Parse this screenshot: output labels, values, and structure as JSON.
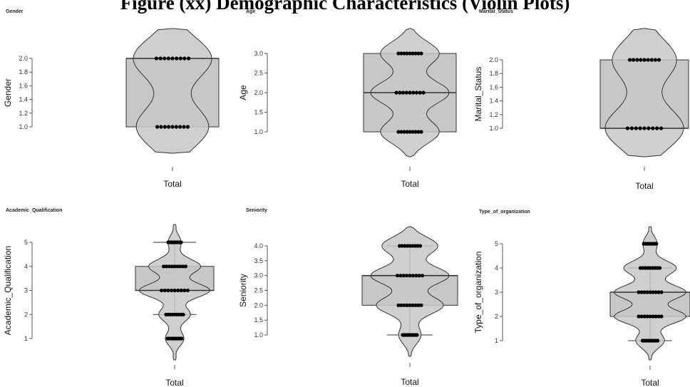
{
  "page_title": "Figure (xx) Demographic Characteristics (Violin Plots)",
  "chart_data": [
    {
      "type": "violin",
      "title": "Gender",
      "ylabel": "Gender",
      "categories": [
        "Total"
      ],
      "yticks": [
        "1.0",
        "1.2",
        "1.4",
        "1.6",
        "1.8",
        "2.0"
      ],
      "ylim": [
        1.0,
        2.0
      ],
      "box": {
        "q1": 1.0,
        "median": 2.0,
        "q3": 2.0,
        "whisker_low": 1.0,
        "whisker_high": 2.0
      },
      "values": [
        1,
        2
      ],
      "density": [
        0.48,
        0.52
      ]
    },
    {
      "type": "violin",
      "title": "Age",
      "ylabel": "Age",
      "categories": [
        "Total"
      ],
      "yticks": [
        "1.0",
        "1.5",
        "2.0",
        "2.5",
        "3.0"
      ],
      "ylim": [
        1.0,
        3.0
      ],
      "box": {
        "q1": 1.0,
        "median": 2.0,
        "q3": 3.0,
        "whisker_low": 1.0,
        "whisker_high": 3.0
      },
      "values": [
        1,
        2,
        3
      ],
      "density": [
        0.3,
        0.4,
        0.3
      ]
    },
    {
      "type": "violin",
      "title": "Marital_Status",
      "ylabel": "Marital_Status",
      "categories": [
        "Total"
      ],
      "yticks": [
        "1.0",
        "1.2",
        "1.4",
        "1.6",
        "1.8",
        "2.0"
      ],
      "ylim": [
        1.0,
        2.0
      ],
      "box": {
        "q1": 1.0,
        "median": 1.0,
        "q3": 2.0,
        "whisker_low": 1.0,
        "whisker_high": 2.0
      },
      "values": [
        1,
        2
      ],
      "density": [
        0.55,
        0.45
      ]
    },
    {
      "type": "violin",
      "title": "Academic_Qualification",
      "ylabel": "Academic_Qualification",
      "categories": [
        "Total"
      ],
      "yticks": [
        "1",
        "2",
        "3",
        "4",
        "5"
      ],
      "ylim": [
        1,
        5
      ],
      "box": {
        "q1": 3.0,
        "median": 3.0,
        "q3": 4.0,
        "whisker_low": 2.0,
        "whisker_high": 5.0
      },
      "values": [
        1,
        2,
        3,
        4,
        5
      ],
      "density": [
        0.1,
        0.17,
        0.38,
        0.28,
        0.07
      ]
    },
    {
      "type": "violin",
      "title": "Seniority",
      "ylabel": "Seniority",
      "categories": [
        "Total"
      ],
      "yticks": [
        "1.0",
        "1.5",
        "2.0",
        "2.5",
        "3.0",
        "3.5",
        "4.0"
      ],
      "ylim": [
        1.0,
        4.0
      ],
      "box": {
        "q1": 2.0,
        "median": 3.0,
        "q3": 3.0,
        "whisker_low": 1.0,
        "whisker_high": 4.0
      },
      "values": [
        1,
        2,
        3,
        4
      ],
      "density": [
        0.1,
        0.3,
        0.35,
        0.25
      ]
    },
    {
      "type": "violin",
      "title": "Type_of_organization",
      "ylabel": "Type_of_organization",
      "categories": [
        "Total"
      ],
      "yticks": [
        "1",
        "2",
        "3",
        "4",
        "5"
      ],
      "ylim": [
        1,
        5
      ],
      "box": {
        "q1": 2.0,
        "median": 3.0,
        "q3": 3.0,
        "whisker_low": 1.0,
        "whisker_high": 4.0
      },
      "values": [
        1,
        2,
        3,
        4,
        5
      ],
      "density": [
        0.12,
        0.3,
        0.3,
        0.22,
        0.06
      ]
    }
  ],
  "colors": {
    "fill": "#c7c7c7",
    "stroke": "#333333",
    "points": "#000000"
  }
}
